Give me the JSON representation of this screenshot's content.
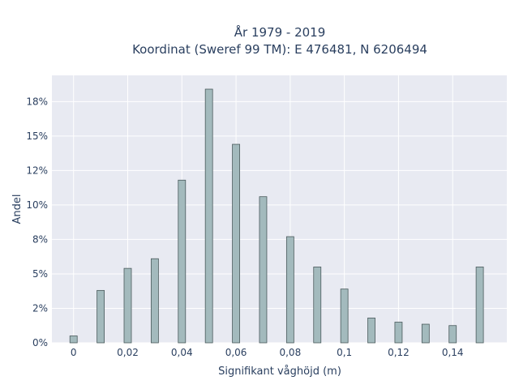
{
  "chart_data": {
    "type": "bar",
    "title_line1": "År 1979 - 2019",
    "title_line2": "Koordinat (Sweref 99 TM): E 476481, N 6206494",
    "xlabel": "Signifikant våghöjd (m)",
    "ylabel": "Andel",
    "x": [
      0,
      0.01,
      0.02,
      0.03,
      0.04,
      0.05,
      0.06,
      0.07,
      0.08,
      0.09,
      0.1,
      0.11,
      0.12,
      0.13,
      0.14,
      0.15
    ],
    "values": [
      0.5,
      3.8,
      5.4,
      6.1,
      11.8,
      18.4,
      14.4,
      10.6,
      7.7,
      5.5,
      3.9,
      1.8,
      1.5,
      1.35,
      1.25,
      5.5
    ],
    "xlim": [
      -0.008,
      0.16
    ],
    "ylim": [
      0,
      19.4
    ],
    "x_ticks": [
      0,
      0.02,
      0.04,
      0.06,
      0.08,
      0.1,
      0.12,
      0.14
    ],
    "x_tick_labels": [
      "0",
      "0,02",
      "0,04",
      "0,06",
      "0,08",
      "0,1",
      "0,12",
      "0,14"
    ],
    "y_ticks": [
      0,
      2.5,
      5,
      7.5,
      10,
      12.5,
      15,
      17.5
    ],
    "y_tick_labels": [
      "0%",
      "2%",
      "5%",
      "8%",
      "10%",
      "12%",
      "15%",
      "18%"
    ],
    "grid": true,
    "colors": {
      "bar_fill": "#a3babd",
      "bar_stroke": "#4a5a5c",
      "plot_bg": "#e8eaf2",
      "grid": "#ffffff"
    }
  }
}
